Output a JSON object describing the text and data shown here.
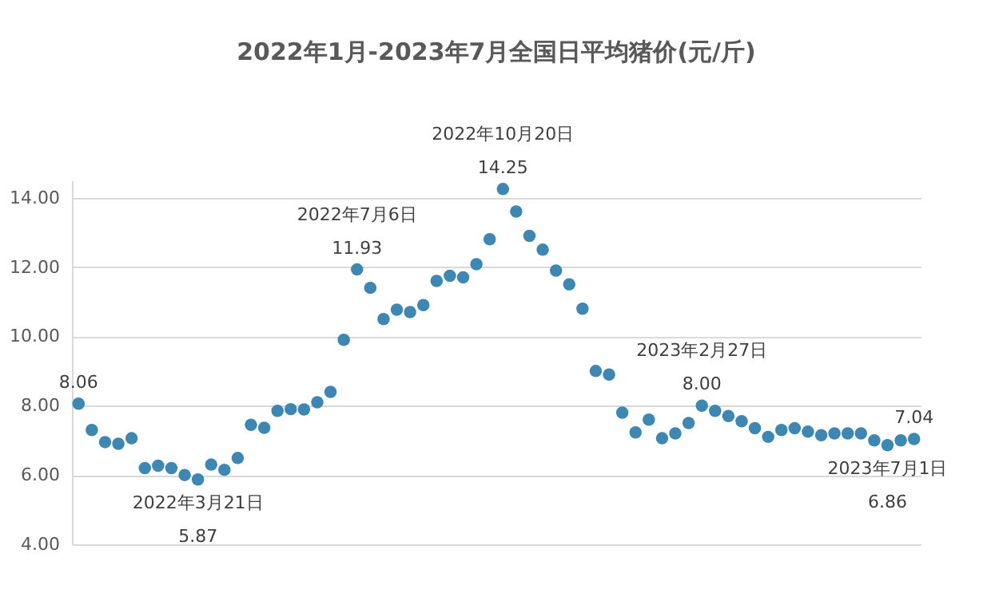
{
  "chart_data": {
    "type": "scatter",
    "title": "2022年1月-2023年7月全国日平均猪价(元/斤)",
    "categories": [
      null,
      null,
      null,
      null,
      null,
      null,
      null,
      null,
      null,
      null,
      null,
      null,
      null,
      null,
      null,
      null,
      null,
      null,
      null,
      null,
      null,
      null,
      null,
      null,
      null,
      null,
      null,
      null,
      null,
      null,
      null,
      null,
      null,
      null,
      null,
      null,
      null,
      null,
      null,
      null,
      null,
      null,
      null,
      null,
      null,
      null,
      null,
      null,
      null,
      null,
      null,
      null,
      null,
      null,
      null,
      null,
      null,
      null,
      null,
      null,
      null,
      null,
      null,
      null
    ],
    "series": [
      {
        "color": "#3d87b4",
        "values": [
          8.06,
          7.3,
          6.95,
          6.9,
          7.06,
          6.2,
          6.27,
          6.2,
          6.0,
          5.87,
          6.3,
          6.15,
          6.49,
          7.45,
          7.36,
          7.85,
          7.9,
          7.89,
          8.1,
          8.4,
          9.9,
          11.93,
          11.4,
          10.5,
          10.77,
          10.7,
          10.9,
          11.6,
          11.75,
          11.7,
          12.08,
          12.8,
          14.25,
          13.6,
          12.9,
          12.5,
          11.9,
          11.5,
          10.8,
          9.0,
          8.9,
          7.8,
          7.23,
          7.6,
          7.06,
          7.2,
          7.5,
          8.0,
          7.85,
          7.7,
          7.55,
          7.35,
          7.1,
          7.3,
          7.35,
          7.25,
          7.15,
          7.2,
          7.2,
          7.2,
          7.0,
          6.86,
          7.0,
          7.04
        ],
        "value_labels": [
          "8.06",
          null,
          null,
          null,
          null,
          null,
          null,
          null,
          null,
          "5.87",
          null,
          null,
          null,
          null,
          null,
          null,
          null,
          null,
          null,
          null,
          null,
          "11.93",
          null,
          null,
          null,
          null,
          null,
          null,
          null,
          null,
          null,
          null,
          "14.25",
          null,
          null,
          null,
          null,
          null,
          null,
          null,
          null,
          null,
          null,
          null,
          null,
          null,
          null,
          "8.00",
          null,
          null,
          null,
          null,
          null,
          null,
          null,
          null,
          null,
          null,
          null,
          null,
          null,
          "6.86",
          null,
          "7.04"
        ]
      }
    ],
    "ylim": [
      4,
      14.5
    ],
    "yticks": [
      {
        "value": 4,
        "label": "4.00"
      },
      {
        "value": 6,
        "label": "6.00"
      },
      {
        "value": 8,
        "label": "8.00"
      },
      {
        "value": 10,
        "label": "10.00"
      },
      {
        "value": 12,
        "label": "12.00"
      },
      {
        "value": 14,
        "label": "14.00"
      }
    ],
    "grid": "y",
    "tick_labels": "y",
    "marker": "circle",
    "annotations": [
      {
        "text": "2022年3月21日",
        "y": 5.87
      },
      {
        "text": "2022年7月6日",
        "y": 11.93
      },
      {
        "text": "2022年10月20日",
        "y": 14.25
      },
      {
        "text": "2023年2月27日",
        "y": 8.0
      },
      {
        "text": "2023年7月1日",
        "y": 6.86
      }
    ]
  }
}
